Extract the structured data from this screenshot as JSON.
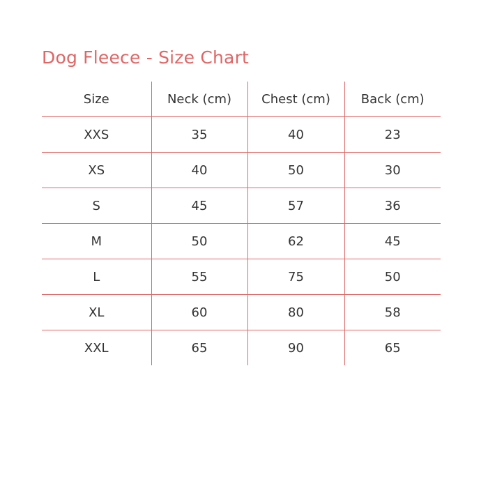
{
  "title": "Dog Fleece - Size Chart",
  "accent_color": "#e06666",
  "headers": [
    "Size",
    "Neck (cm)",
    "Chest (cm)",
    "Back (cm)"
  ],
  "rows": [
    [
      "XXS",
      "35",
      "40",
      "23"
    ],
    [
      "XS",
      "40",
      "50",
      "30"
    ],
    [
      "S",
      "45",
      "57",
      "36"
    ],
    [
      "M",
      "50",
      "62",
      "45"
    ],
    [
      "L",
      "55",
      "75",
      "50"
    ],
    [
      "XL",
      "60",
      "80",
      "58"
    ],
    [
      "XXL",
      "65",
      "90",
      "65"
    ]
  ]
}
